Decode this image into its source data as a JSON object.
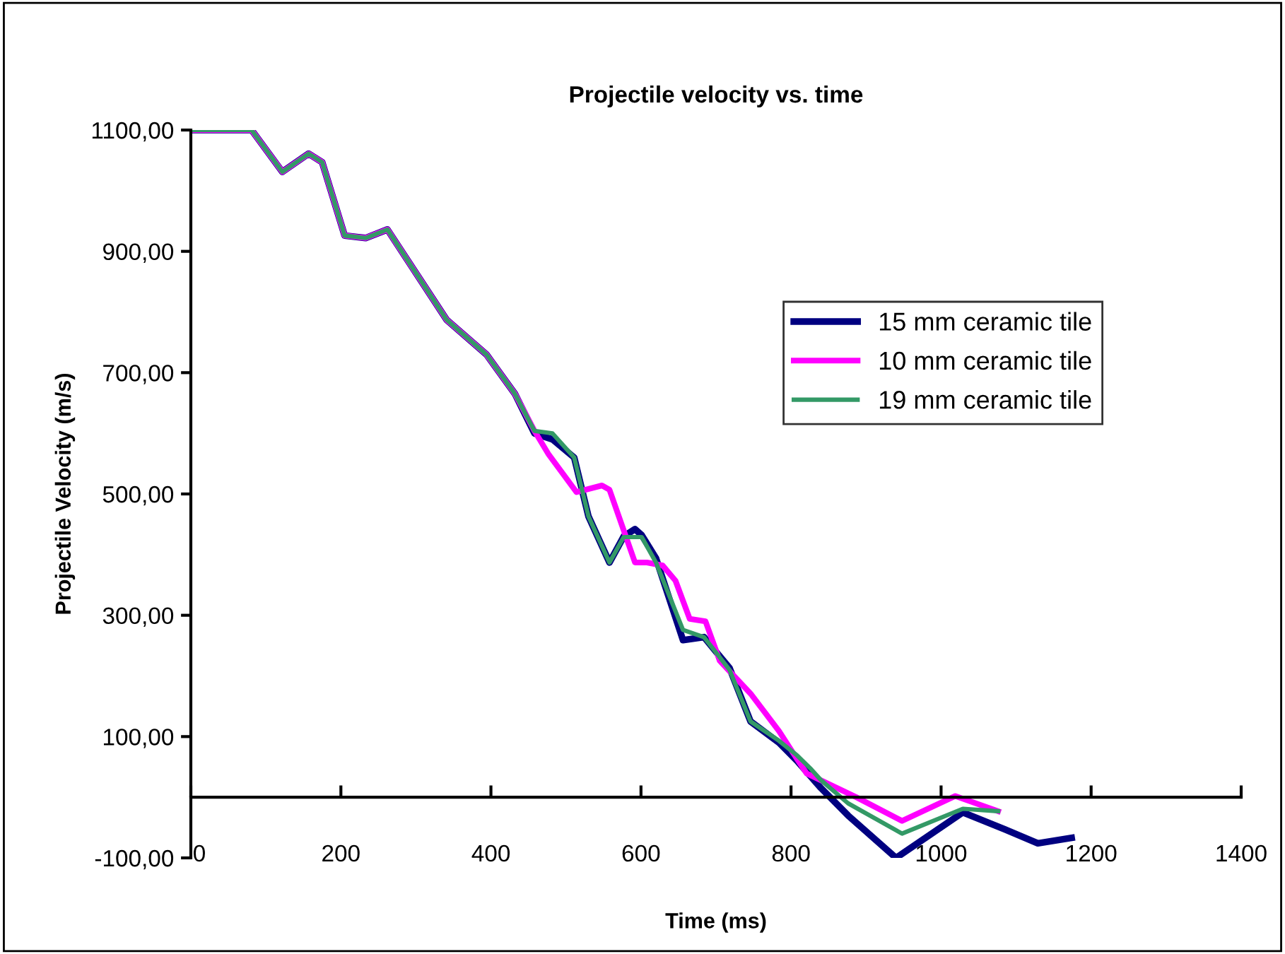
{
  "chart_data": {
    "type": "line",
    "title": "Projectile velocity vs. time",
    "xlabel": "Time (ms)",
    "ylabel": "Projectile Velocity (m/s)",
    "xlim": [
      0,
      1400
    ],
    "xticks": [
      0,
      200,
      400,
      600,
      800,
      1000,
      1200,
      1400
    ],
    "ylim": [
      -100,
      1100
    ],
    "yticks": [
      {
        "value": -100,
        "label": "-100,00"
      },
      {
        "value": 100,
        "label": "100,00"
      },
      {
        "value": 300,
        "label": "300,00"
      },
      {
        "value": 500,
        "label": "500,00"
      },
      {
        "value": 700,
        "label": "700,00"
      },
      {
        "value": 900,
        "label": "900,00"
      },
      {
        "value": 1100,
        "label": "1100,00"
      }
    ],
    "grid": false,
    "legend": "right",
    "marker": "none",
    "line_style": "solid",
    "series": [
      {
        "name": "15 mm ceramic tile",
        "color": "#000080",
        "x": [
          0,
          81,
          122,
          157,
          175,
          205,
          233,
          262,
          341,
          394,
          432,
          458,
          482,
          511,
          530,
          558,
          577,
          592,
          601,
          620,
          656,
          684,
          718,
          746,
          784,
          808,
          840,
          876,
          940,
          1029,
          1085,
          1129,
          1174
        ],
        "values": [
          1100,
          1100,
          1031,
          1061,
          1047,
          926,
          922,
          936,
          787,
          730,
          665,
          600,
          590,
          560,
          463,
          387,
          430,
          442,
          432,
          394,
          259,
          264,
          213,
          125,
          90,
          60,
          15,
          -30,
          -100,
          -25,
          -53,
          -76,
          -67
        ]
      },
      {
        "name": "10 mm ceramic tile",
        "color": "#ff00ff",
        "x": [
          0,
          81,
          122,
          157,
          175,
          205,
          233,
          262,
          341,
          394,
          432,
          458,
          477,
          514,
          548,
          558,
          592,
          608,
          629,
          646,
          665,
          686,
          705,
          746,
          784,
          808,
          821,
          887,
          948,
          1019,
          1076
        ],
        "values": [
          1100,
          1100,
          1031,
          1061,
          1047,
          926,
          922,
          936,
          787,
          730,
          665,
          604,
          565,
          503,
          514,
          507,
          387,
          387,
          382,
          357,
          294,
          290,
          225,
          171,
          109,
          63,
          39,
          0,
          -39,
          2,
          -23
        ]
      },
      {
        "name": "19 mm ceramic tile",
        "color": "#339966",
        "x": [
          0,
          81,
          122,
          157,
          175,
          205,
          233,
          262,
          341,
          394,
          432,
          458,
          482,
          511,
          530,
          558,
          577,
          601,
          620,
          656,
          684,
          718,
          746,
          784,
          808,
          827,
          840,
          876,
          948,
          1029,
          1076
        ],
        "values": [
          1100,
          1100,
          1031,
          1061,
          1047,
          926,
          922,
          936,
          787,
          730,
          665,
          604,
          600,
          560,
          463,
          387,
          429,
          429,
          387,
          276,
          264,
          210,
          125,
          93,
          69,
          46,
          28,
          -10,
          -60,
          -19,
          -23
        ]
      }
    ]
  }
}
